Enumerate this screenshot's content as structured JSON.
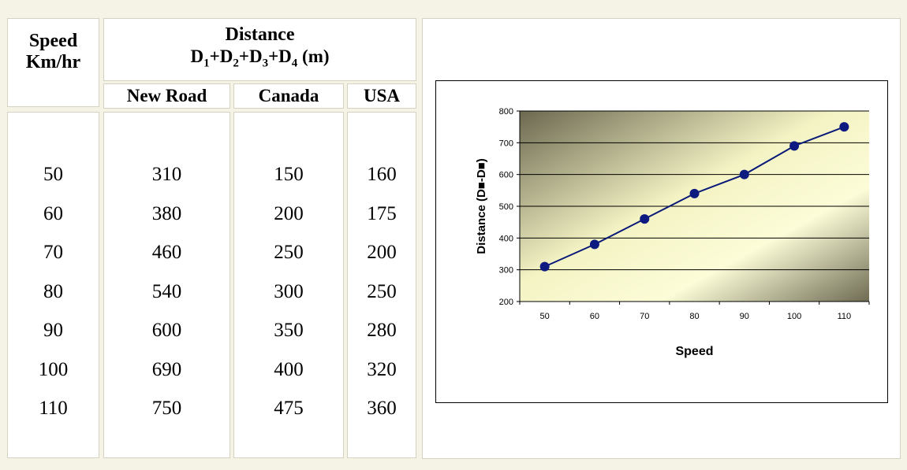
{
  "table": {
    "speed_header_line1": "Speed",
    "speed_header_line2": "Km/hr",
    "distance_header": "Distance",
    "distance_formula": {
      "d1": "D",
      "s1": "1",
      "p1": "+",
      "d2": "D",
      "s2": "2",
      "p2": "+",
      "d3": "D",
      "s3": "3",
      "p3": "+",
      "d4": "D",
      "s4": "4",
      "unit": " (m)"
    },
    "columns": [
      "New Road",
      "Canada",
      "USA"
    ],
    "speed": [
      "50",
      "60",
      "70",
      "80",
      "90",
      "100",
      "110"
    ],
    "new_road": [
      "310",
      "380",
      "460",
      "540",
      "600",
      "690",
      "750"
    ],
    "canada": [
      "150",
      "200",
      "250",
      "300",
      "350",
      "400",
      "475"
    ],
    "usa": [
      "160",
      "175",
      "200",
      "250",
      "280",
      "320",
      "360"
    ]
  },
  "chart_data": {
    "type": "line",
    "x": [
      50,
      60,
      70,
      80,
      90,
      100,
      110
    ],
    "series": [
      {
        "values": [
          310,
          380,
          460,
          540,
          600,
          690,
          750
        ]
      }
    ],
    "xlabel": "Speed",
    "ylabel": "Distance (D■-D■)",
    "ylim": [
      200,
      800
    ],
    "yticks": [
      200,
      300,
      400,
      500,
      600,
      700,
      800
    ],
    "grid": true,
    "colors": {
      "line": "#0a1a78",
      "marker": "#0d1a80",
      "gradient_dark": "#6b6850",
      "gradient_light": "#fcfcd8"
    }
  }
}
